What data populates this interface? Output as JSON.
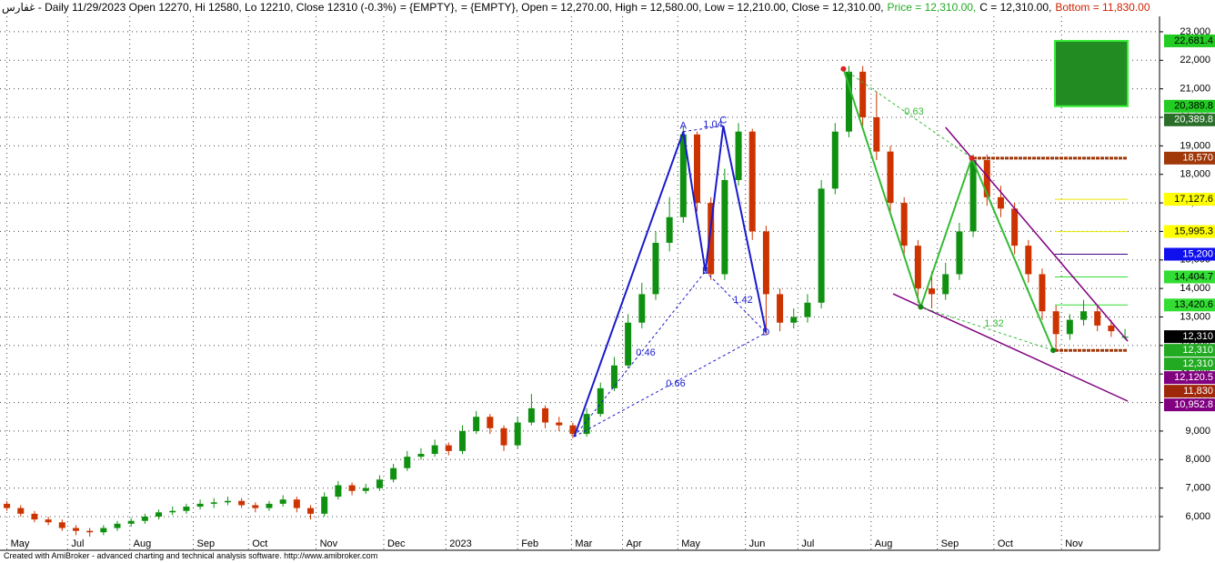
{
  "chart_data": {
    "type": "candlestick",
    "title_parts": [
      {
        "text": "غفارس - Daily 11/29/2023 Open 12270, Hi 12580, Lo 12210, Close 12310 (-0.3%)",
        "color": "#000000"
      },
      {
        "text": "= {EMPTY},",
        "color": "#000000"
      },
      {
        "text": "= {EMPTY}, Open = 12,270.00, High = 12,580.00, Low = 12,210.00, Close = 12,310.00,",
        "color": "#000000"
      },
      {
        "text": "Price = 12,310.00,",
        "color": "#22aa22"
      },
      {
        "text": "C = 12,310.00,",
        "color": "#000000"
      },
      {
        "text": "Bottom = 11,830.00",
        "color": "#cc2200"
      }
    ],
    "footer": "Created with AmiBroker - advanced charting and technical analysis software. http://www.amibroker.com",
    "xlim": [
      -0.5,
      83.5
    ],
    "ylim": [
      4820,
      23540
    ],
    "xticks": [
      {
        "value": 0,
        "label": "May"
      },
      {
        "value": 4.4,
        "label": "Jul"
      },
      {
        "value": 8.9,
        "label": "Aug"
      },
      {
        "value": 13.5,
        "label": "Sep"
      },
      {
        "value": 17.5,
        "label": "Oct"
      },
      {
        "value": 22.4,
        "label": "Nov"
      },
      {
        "value": 27.3,
        "label": "Dec"
      },
      {
        "value": 31.8,
        "label": "2023"
      },
      {
        "value": 37.0,
        "label": "Feb"
      },
      {
        "value": 40.9,
        "label": "Mar"
      },
      {
        "value": 44.6,
        "label": "Apr"
      },
      {
        "value": 48.6,
        "label": "May"
      },
      {
        "value": 53.5,
        "label": "Jun"
      },
      {
        "value": 57.3,
        "label": "Jul"
      },
      {
        "value": 62.6,
        "label": "Aug"
      },
      {
        "value": 67.4,
        "label": "Sep"
      },
      {
        "value": 71.5,
        "label": "Oct"
      },
      {
        "value": 76.4,
        "label": "Nov"
      }
    ],
    "yticks": [
      {
        "value": 6000,
        "label": "6,000"
      },
      {
        "value": 7000,
        "label": "7,000"
      },
      {
        "value": 8000,
        "label": "8,000"
      },
      {
        "value": 9000,
        "label": "9,000"
      },
      {
        "value": 10000,
        "label": "10,000"
      },
      {
        "value": 11000,
        "label": "11,000"
      },
      {
        "value": 12000,
        "label": "12,000"
      },
      {
        "value": 13000,
        "label": "13,000"
      },
      {
        "value": 14000,
        "label": "14,000"
      },
      {
        "value": 15000,
        "label": "15,000"
      },
      {
        "value": 16000,
        "label": "16,000"
      },
      {
        "value": 17000,
        "label": "17,000"
      },
      {
        "value": 18000,
        "label": "18,000"
      },
      {
        "value": 19000,
        "label": "19,000"
      },
      {
        "value": 20000,
        "label": "20,000"
      },
      {
        "value": 21000,
        "label": "21,000"
      },
      {
        "value": 22000,
        "label": "22,000"
      },
      {
        "value": 23000,
        "label": "23,000"
      }
    ],
    "grid": true,
    "up_color": "#109010",
    "down_color": "#cc3300",
    "candles": [
      [
        6450,
        6550,
        6200,
        6300
      ],
      [
        6300,
        6400,
        6000,
        6100
      ],
      [
        6100,
        6200,
        5800,
        5900
      ],
      [
        5900,
        6000,
        5700,
        5800
      ],
      [
        5800,
        5900,
        5500,
        5600
      ],
      [
        5600,
        5700,
        5350,
        5500
      ],
      [
        5500,
        5600,
        5300,
        5450
      ],
      [
        5450,
        5700,
        5350,
        5600
      ],
      [
        5600,
        5850,
        5500,
        5750
      ],
      [
        5750,
        5950,
        5650,
        5850
      ],
      [
        5850,
        6100,
        5750,
        6000
      ],
      [
        6000,
        6250,
        5900,
        6150
      ],
      [
        6150,
        6350,
        6050,
        6200
      ],
      [
        6200,
        6450,
        6100,
        6350
      ],
      [
        6350,
        6600,
        6250,
        6450
      ],
      [
        6450,
        6650,
        6300,
        6500
      ],
      [
        6500,
        6700,
        6400,
        6550
      ],
      [
        6550,
        6650,
        6300,
        6400
      ],
      [
        6400,
        6500,
        6150,
        6300
      ],
      [
        6300,
        6550,
        6200,
        6450
      ],
      [
        6450,
        6750,
        6350,
        6600
      ],
      [
        6600,
        6700,
        6150,
        6300
      ],
      [
        6300,
        6400,
        5900,
        6100
      ],
      [
        6100,
        6850,
        6000,
        6700
      ],
      [
        6700,
        7250,
        6600,
        7100
      ],
      [
        7100,
        7200,
        6750,
        6900
      ],
      [
        6900,
        7150,
        6800,
        7000
      ],
      [
        7000,
        7450,
        6900,
        7300
      ],
      [
        7300,
        7850,
        7200,
        7700
      ],
      [
        7700,
        8300,
        7600,
        8100
      ],
      [
        8100,
        8400,
        8000,
        8200
      ],
      [
        8200,
        8700,
        8100,
        8500
      ],
      [
        8500,
        8600,
        8150,
        8300
      ],
      [
        8300,
        9200,
        8200,
        9000
      ],
      [
        9000,
        9700,
        8900,
        9500
      ],
      [
        9500,
        9600,
        8900,
        9100
      ],
      [
        9100,
        9200,
        8300,
        8500
      ],
      [
        8500,
        9500,
        8400,
        9300
      ],
      [
        9300,
        10300,
        9200,
        9800
      ],
      [
        9800,
        9900,
        9100,
        9300
      ],
      [
        9300,
        9500,
        9000,
        9200
      ],
      [
        9200,
        9300,
        8750,
        8900
      ],
      [
        8900,
        9800,
        8800,
        9600
      ],
      [
        9600,
        10700,
        9500,
        10500
      ],
      [
        10500,
        11600,
        10400,
        11300
      ],
      [
        11300,
        13100,
        11200,
        12800
      ],
      [
        12800,
        14200,
        12600,
        13800
      ],
      [
        13800,
        16000,
        13600,
        15600
      ],
      [
        15600,
        17200,
        15300,
        16500
      ],
      [
        16500,
        19700,
        16300,
        19400
      ],
      [
        19400,
        19500,
        16700,
        17000
      ],
      [
        17000,
        17200,
        14300,
        14500
      ],
      [
        14500,
        18200,
        14300,
        17800
      ],
      [
        17800,
        19800,
        17600,
        19500
      ],
      [
        19500,
        19600,
        15700,
        16000
      ],
      [
        16000,
        16200,
        12400,
        13800
      ],
      [
        13800,
        14000,
        12500,
        12800
      ],
      [
        12800,
        13300,
        12600,
        13000
      ],
      [
        13000,
        13800,
        12800,
        13500
      ],
      [
        13500,
        17800,
        13300,
        17500
      ],
      [
        17500,
        19800,
        17300,
        19500
      ],
      [
        19500,
        21800,
        19300,
        21600
      ],
      [
        21600,
        21800,
        19700,
        20000
      ],
      [
        20000,
        20900,
        18500,
        18800
      ],
      [
        18800,
        19000,
        16700,
        17000
      ],
      [
        17000,
        17200,
        15200,
        15500
      ],
      [
        15500,
        15700,
        13500,
        14000
      ],
      [
        14000,
        14600,
        13300,
        13800
      ],
      [
        13800,
        14900,
        13600,
        14500
      ],
      [
        14500,
        16300,
        14300,
        16000
      ],
      [
        16000,
        18700,
        15800,
        18500
      ],
      [
        18500,
        18700,
        16900,
        17200
      ],
      [
        17200,
        17600,
        16500,
        16800
      ],
      [
        16800,
        17000,
        15200,
        15500
      ],
      [
        15500,
        15700,
        14200,
        14500
      ],
      [
        14500,
        14700,
        12900,
        13200
      ],
      [
        13200,
        13400,
        11830,
        12400
      ],
      [
        12400,
        13100,
        12200,
        12900
      ],
      [
        12900,
        13600,
        12700,
        13200
      ],
      [
        13200,
        13400,
        12500,
        12700
      ],
      [
        12700,
        12900,
        12300,
        12500
      ],
      [
        12270,
        12580,
        12210,
        12310
      ]
    ],
    "harmonic": {
      "color": "#1a1acc",
      "labels": [
        null,
        "A",
        "B",
        "C",
        "D"
      ],
      "x": [
        41.1,
        49.0,
        50.6,
        51.9,
        55.0
      ],
      "y": [
        8800,
        19500,
        14600,
        19700,
        12450
      ],
      "ratios": [
        1.04,
        0.46,
        0.66,
        1.42
      ]
    },
    "zigzag": {
      "color": "#33bb33",
      "x": [
        60.6,
        66.2,
        69.9,
        75.8
      ],
      "y": [
        21700,
        13350,
        18570,
        11830
      ],
      "ratios": [
        0.63,
        1.32
      ]
    },
    "trendlines": {
      "color": "#800080",
      "upper": {
        "x": [
          68.0,
          81.2
        ],
        "y": [
          19650,
          12150
        ]
      },
      "lower": {
        "x": [
          64.2,
          81.2
        ],
        "y": [
          13810,
          10050
        ]
      }
    },
    "target_box": {
      "color": "#228b22",
      "values": [
        22681.4,
        20389.8
      ]
    },
    "levels": {
      "values": [
        18570,
        17127.6,
        15995.3,
        15200,
        14404.7,
        13420.6,
        11830
      ],
      "colors": [
        "#a0380a",
        "#e8e800",
        "#e8e800",
        "#400080",
        "#33dd33",
        "#33dd33",
        "#a0380a"
      ]
    },
    "tags": {
      "values": [
        22681.4,
        20389.8,
        20389.8,
        18570,
        17127.6,
        15995.3,
        15200,
        14404.7,
        13420.6,
        12310,
        12310,
        12310,
        12120.5,
        11830,
        10952.8
      ],
      "value_labels": [
        "22,681.4",
        "20,389.8",
        "20,389.8",
        "18,570",
        "17,127.6",
        "15,995.3",
        "15,200",
        "14,404.7",
        "13,420.6",
        "12,310",
        "12,310",
        "12,310",
        "12,120.5",
        "11,830",
        "10,952.8"
      ],
      "colors": [
        "#22cc22",
        "#22cc22",
        "#2a6e2a",
        "#a0380a",
        "#ffff00",
        "#ffff00",
        "#1010ee",
        "#33dd33",
        "#33dd33",
        "#000000",
        "#22aa22",
        "#22aa22",
        "#800080",
        "#a0280a",
        "#800080"
      ],
      "text_colors": [
        "#000000",
        "#000000",
        "#ffffff",
        "#ffffff",
        "#000000",
        "#000000",
        "#ffffff",
        "#000000",
        "#000000",
        "#ffffff",
        "#ffffff",
        "#ffffff",
        "#ffffff",
        "#ffffff",
        "#ffffff"
      ]
    }
  }
}
